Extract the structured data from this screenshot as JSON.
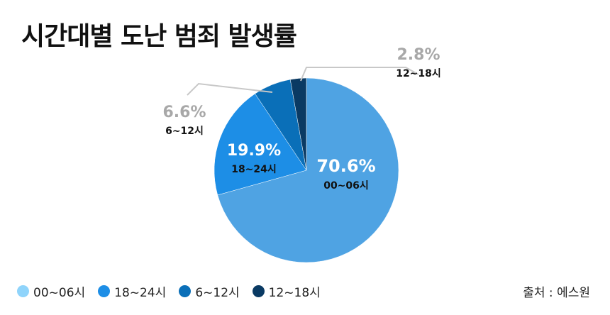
{
  "title": "시간대별 도난 범죄 발생률",
  "source": "출처 : 에스원",
  "chart_data": {
    "type": "pie",
    "title": "시간대별 도난 범죄 발생률",
    "slices": [
      {
        "label": "00~06시",
        "value": 70.6,
        "pct_text": "70.6%",
        "color": "#4fa3e3"
      },
      {
        "label": "18~24시",
        "value": 19.9,
        "pct_text": "19.9%",
        "color": "#1d8ee6"
      },
      {
        "label": "6~12시",
        "value": 6.6,
        "pct_text": "6.6%",
        "color": "#0a6fb8"
      },
      {
        "label": "12~18시",
        "value": 2.8,
        "pct_text": "2.8%",
        "color": "#0a3a63"
      }
    ],
    "legend_position": "bottom-left"
  },
  "legend": [
    {
      "label": "00~06시",
      "color": "#8fd4fb"
    },
    {
      "label": "18~24시",
      "color": "#1d8ee6"
    },
    {
      "label": "6~12시",
      "color": "#0a6fb8"
    },
    {
      "label": "12~18시",
      "color": "#0a3a63"
    }
  ]
}
